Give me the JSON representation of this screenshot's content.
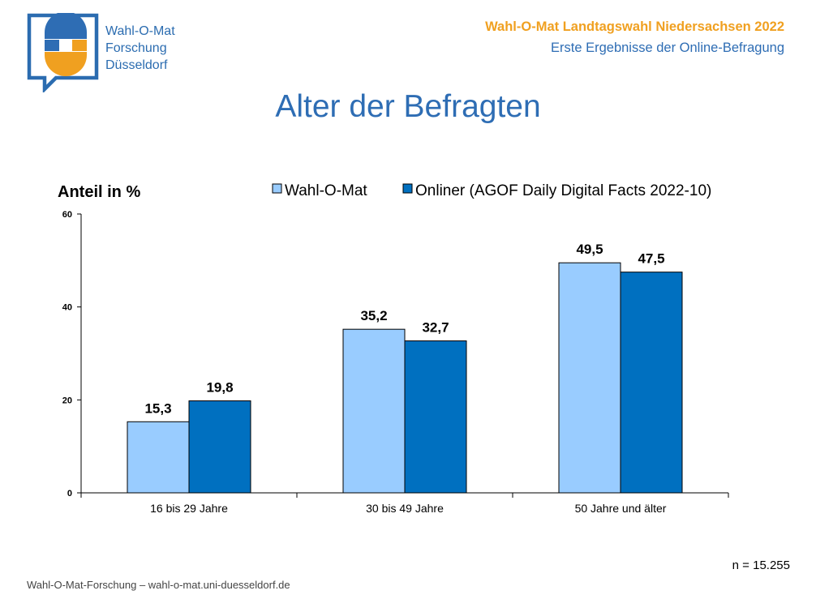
{
  "logo": {
    "lines": [
      "Wahl-O-Mat",
      "Forschung",
      "Düsseldorf"
    ]
  },
  "header": {
    "title": "Wahl-O-Mat Landtagswahl Niedersachsen 2022",
    "subtitle": "Erste Ergebnisse der Online-Befragung"
  },
  "page_title": "Alter der Befragten",
  "chart_data": {
    "type": "bar",
    "title": "",
    "ylabel": "Anteil in %",
    "xlabel": "",
    "ylim": [
      0,
      60
    ],
    "yticks": [
      "0",
      "20",
      "40",
      "60"
    ],
    "categories": [
      "16 bis 29 Jahre",
      "30 bis 49 Jahre",
      "50 Jahre und älter"
    ],
    "series": [
      {
        "name": "Wahl-O-Mat",
        "values": [
          15.3,
          35.2,
          49.5
        ],
        "labels": [
          "15,3",
          "35,2",
          "49,5"
        ],
        "color": "#99ccff"
      },
      {
        "name": "Onliner (AGOF Daily Digital Facts 2022-10)",
        "values": [
          19.8,
          32.7,
          47.5
        ],
        "labels": [
          "19,8",
          "32,7",
          "47,5"
        ],
        "color": "#0070c0"
      }
    ],
    "grid": false,
    "legend": "top"
  },
  "footer": {
    "n": "n = 15.255",
    "credit": "Wahl-O-Mat-Forschung – wahl-o-mat.uni-duesseldorf.de"
  }
}
